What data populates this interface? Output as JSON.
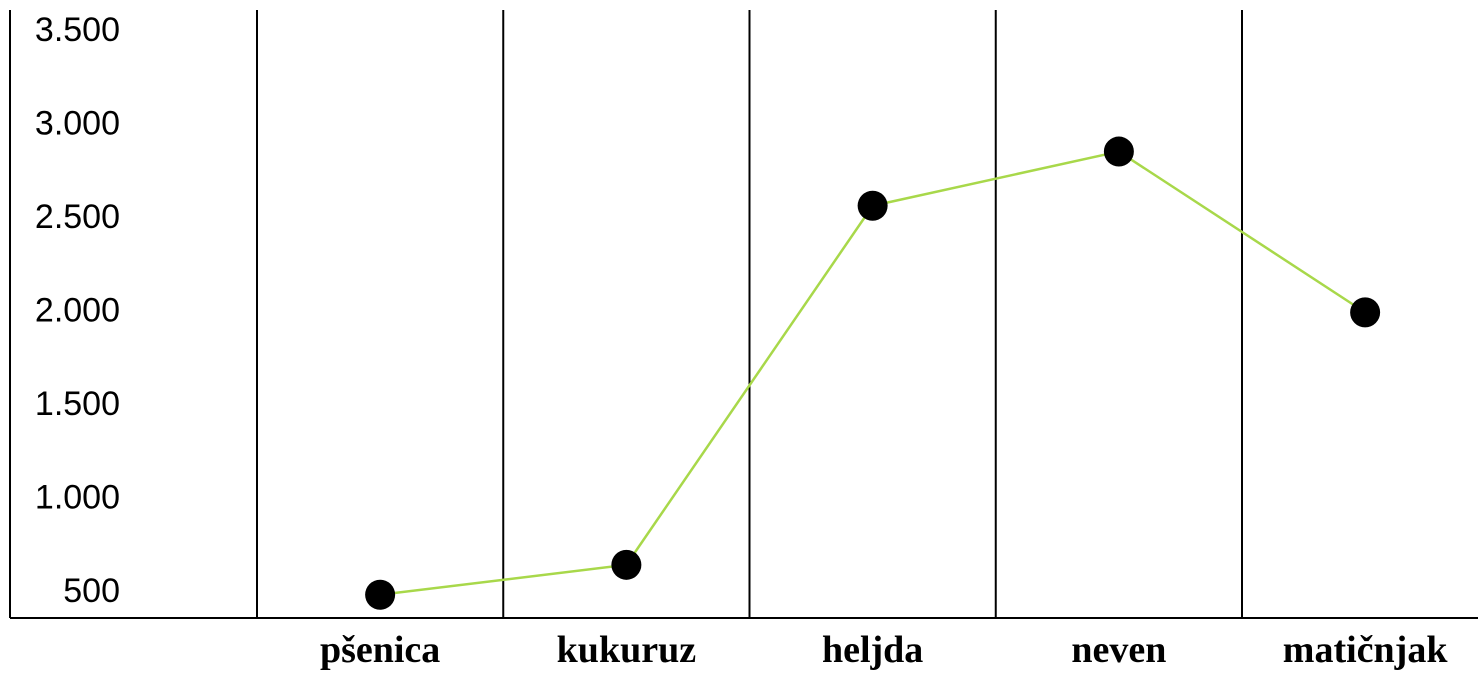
{
  "chart_data": {
    "type": "line",
    "title": "",
    "xlabel": "",
    "ylabel": "",
    "categories": [
      "pšenica",
      "kukuruz",
      "heljda",
      "neven",
      "matičnjak"
    ],
    "series": [
      {
        "values": [
          480,
          640,
          2560,
          2850,
          1990
        ]
      }
    ],
    "ylim": [
      500,
      3500
    ],
    "y_ticks": [
      "3.500",
      "3.000",
      "2.500",
      "2.000",
      "1.500",
      "1.000",
      "500"
    ],
    "y_tick_values": [
      3500,
      3000,
      2500,
      2000,
      1500,
      1000,
      500
    ],
    "grid": "vertical",
    "legend": "none",
    "colors": {
      "line": "#a8d84a",
      "marker": "#000000",
      "grid": "#000000",
      "background": "#ffffff"
    }
  }
}
